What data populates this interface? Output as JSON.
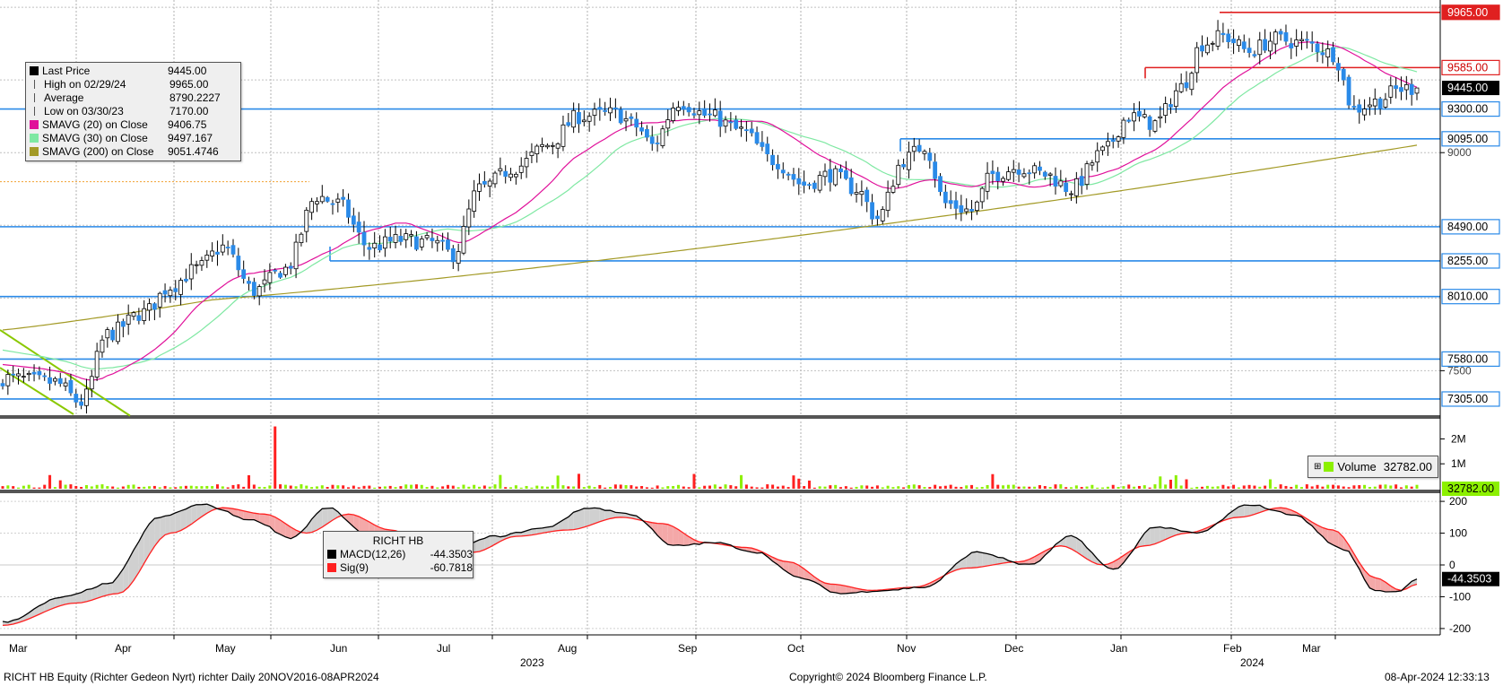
{
  "security": "RICHT HB",
  "footer": {
    "left": "RICHT HB Equity (Richter Gedeon Nyrt) richter  Daily 20NOV2016-08APR2024",
    "center": "Copyright© 2024 Bloomberg Finance L.P.",
    "right": "08-Apr-2024 12:33:13"
  },
  "legend": {
    "items": [
      {
        "label": "Last Price",
        "value": "9445.00",
        "icon": "black-square",
        "color": "#000000"
      },
      {
        "label": "High on 02/29/24",
        "value": "9965.00",
        "icon": "high-marker",
        "color": "#555555"
      },
      {
        "label": "Average",
        "value": "8790.2227",
        "icon": "average-marker",
        "color": "#555555"
      },
      {
        "label": "Low on 03/30/23",
        "value": "7170.00",
        "icon": "low-marker",
        "color": "#555555"
      },
      {
        "label": "SMAVG (20)  on Close",
        "value": "9406.75",
        "icon": "magenta-square",
        "color": "#e0109a"
      },
      {
        "label": "SMAVG (30)  on Close",
        "value": "9497.167",
        "icon": "green-square",
        "color": "#7ee8a2"
      },
      {
        "label": "SMAVG (200)  on Close",
        "value": "9051.4746",
        "icon": "olive-square",
        "color": "#a39a26"
      }
    ]
  },
  "volume_legend": {
    "label": "Volume",
    "value": "32782.00",
    "color": "#8cf000"
  },
  "macd_legend": {
    "title": "RICHT HB",
    "items": [
      {
        "label": "MACD(12,26)",
        "value": "-44.3503",
        "color": "#000000"
      },
      {
        "label": "Sig(9)",
        "value": "-60.7818",
        "color": "#ff2020"
      }
    ]
  },
  "chart_data": [
    {
      "type": "candlestick",
      "panel": "price",
      "x_labels": [
        "Mar",
        "Apr",
        "May",
        "Jun",
        "Jul",
        "Aug",
        "Sep",
        "Oct",
        "Nov",
        "Dec",
        "Jan",
        "Feb",
        "Mar"
      ],
      "year_labels": [
        "2023",
        "2024"
      ],
      "ylim": [
        7200,
        10050
      ],
      "y_ticks": [
        "7500",
        "9000"
      ],
      "horizontal_levels": [
        {
          "value": 9965,
          "label": "9965.00",
          "color": "#e02020"
        },
        {
          "value": 9585,
          "label": "9585.00",
          "color": "#e02020"
        },
        {
          "value": 9300,
          "label": "9300.00",
          "color": "#2a8ae8"
        },
        {
          "value": 9095,
          "label": "9095.00",
          "color": "#2a8ae8"
        },
        {
          "value": 8490,
          "label": "8490.00",
          "color": "#2a8ae8"
        },
        {
          "value": 8255,
          "label": "8255.00",
          "color": "#2a8ae8"
        },
        {
          "value": 8010,
          "label": "8010.00",
          "color": "#2a8ae8"
        },
        {
          "value": 7580,
          "label": "7580.00",
          "color": "#2a8ae8"
        },
        {
          "value": 7305,
          "label": "7305.00",
          "color": "#2a8ae8"
        }
      ],
      "last_price": {
        "value": 9445,
        "label": "9445.00"
      },
      "close_anchors": [
        [
          0,
          7450
        ],
        [
          10,
          7420
        ],
        [
          15,
          7280
        ],
        [
          20,
          7750
        ],
        [
          27,
          7900
        ],
        [
          32,
          8080
        ],
        [
          37,
          8200
        ],
        [
          42,
          8350
        ],
        [
          48,
          8050
        ],
        [
          54,
          8200
        ],
        [
          60,
          8700
        ],
        [
          64,
          8650
        ],
        [
          70,
          8350
        ],
        [
          76,
          8400
        ],
        [
          82,
          8380
        ],
        [
          86,
          8300
        ],
        [
          91,
          8750
        ],
        [
          98,
          8900
        ],
        [
          104,
          9050
        ],
        [
          110,
          9250
        ],
        [
          117,
          9270
        ],
        [
          121,
          9180
        ],
        [
          124,
          9050
        ],
        [
          129,
          9350
        ],
        [
          135,
          9250
        ],
        [
          141,
          9150
        ],
        [
          147,
          8950
        ],
        [
          153,
          8780
        ],
        [
          158,
          8850
        ],
        [
          163,
          8750
        ],
        [
          167,
          8550
        ],
        [
          172,
          8950
        ],
        [
          176,
          9050
        ],
        [
          180,
          8650
        ],
        [
          185,
          8600
        ],
        [
          189,
          8850
        ],
        [
          194,
          8900
        ],
        [
          199,
          8850
        ],
        [
          204,
          8750
        ],
        [
          210,
          9000
        ],
        [
          215,
          9250
        ],
        [
          220,
          9200
        ],
        [
          225,
          9450
        ],
        [
          229,
          9750
        ],
        [
          233,
          9800
        ],
        [
          238,
          9700
        ],
        [
          243,
          9780
        ],
        [
          249,
          9750
        ],
        [
          254,
          9680
        ],
        [
          258,
          9300
        ],
        [
          262,
          9350
        ],
        [
          267,
          9440
        ],
        [
          270,
          9445
        ]
      ],
      "sma20_last": 9406.75,
      "sma30_last": 9497.167,
      "sma200_last": 9051.4746
    },
    {
      "type": "bar",
      "panel": "volume",
      "ylim": [
        0,
        2700000
      ],
      "y_ticks": [
        "2M",
        "1M"
      ],
      "last_value": 32782
    },
    {
      "type": "line",
      "panel": "macd",
      "ylim": [
        -220,
        220
      ],
      "y_ticks": [
        "200",
        "100",
        "0",
        "-100",
        "-200"
      ],
      "macd_anchors": [
        [
          0,
          -180
        ],
        [
          12,
          -100
        ],
        [
          20,
          -60
        ],
        [
          30,
          150
        ],
        [
          38,
          190
        ],
        [
          48,
          140
        ],
        [
          55,
          85
        ],
        [
          62,
          180
        ],
        [
          70,
          90
        ],
        [
          78,
          40
        ],
        [
          86,
          50
        ],
        [
          94,
          90
        ],
        [
          103,
          115
        ],
        [
          112,
          180
        ],
        [
          120,
          160
        ],
        [
          128,
          60
        ],
        [
          136,
          70
        ],
        [
          144,
          40
        ],
        [
          152,
          -40
        ],
        [
          160,
          -90
        ],
        [
          168,
          -80
        ],
        [
          176,
          -70
        ],
        [
          186,
          40
        ],
        [
          196,
          0
        ],
        [
          204,
          90
        ],
        [
          212,
          -15
        ],
        [
          220,
          120
        ],
        [
          228,
          100
        ],
        [
          238,
          190
        ],
        [
          246,
          160
        ],
        [
          256,
          50
        ],
        [
          262,
          -80
        ],
        [
          266,
          -85
        ],
        [
          270,
          -44.35
        ]
      ],
      "signal_anchors": [
        [
          0,
          -190
        ],
        [
          14,
          -120
        ],
        [
          22,
          -90
        ],
        [
          32,
          100
        ],
        [
          42,
          180
        ],
        [
          50,
          160
        ],
        [
          58,
          100
        ],
        [
          66,
          160
        ],
        [
          74,
          110
        ],
        [
          82,
          60
        ],
        [
          90,
          40
        ],
        [
          98,
          90
        ],
        [
          108,
          110
        ],
        [
          118,
          150
        ],
        [
          126,
          130
        ],
        [
          134,
          70
        ],
        [
          142,
          55
        ],
        [
          150,
          10
        ],
        [
          158,
          -60
        ],
        [
          166,
          -80
        ],
        [
          174,
          -70
        ],
        [
          184,
          -10
        ],
        [
          194,
          10
        ],
        [
          202,
          60
        ],
        [
          210,
          0
        ],
        [
          218,
          60
        ],
        [
          226,
          100
        ],
        [
          236,
          150
        ],
        [
          244,
          180
        ],
        [
          254,
          110
        ],
        [
          262,
          -40
        ],
        [
          267,
          -80
        ],
        [
          270,
          -60.78
        ]
      ],
      "macd_last": "-44.3503"
    }
  ]
}
